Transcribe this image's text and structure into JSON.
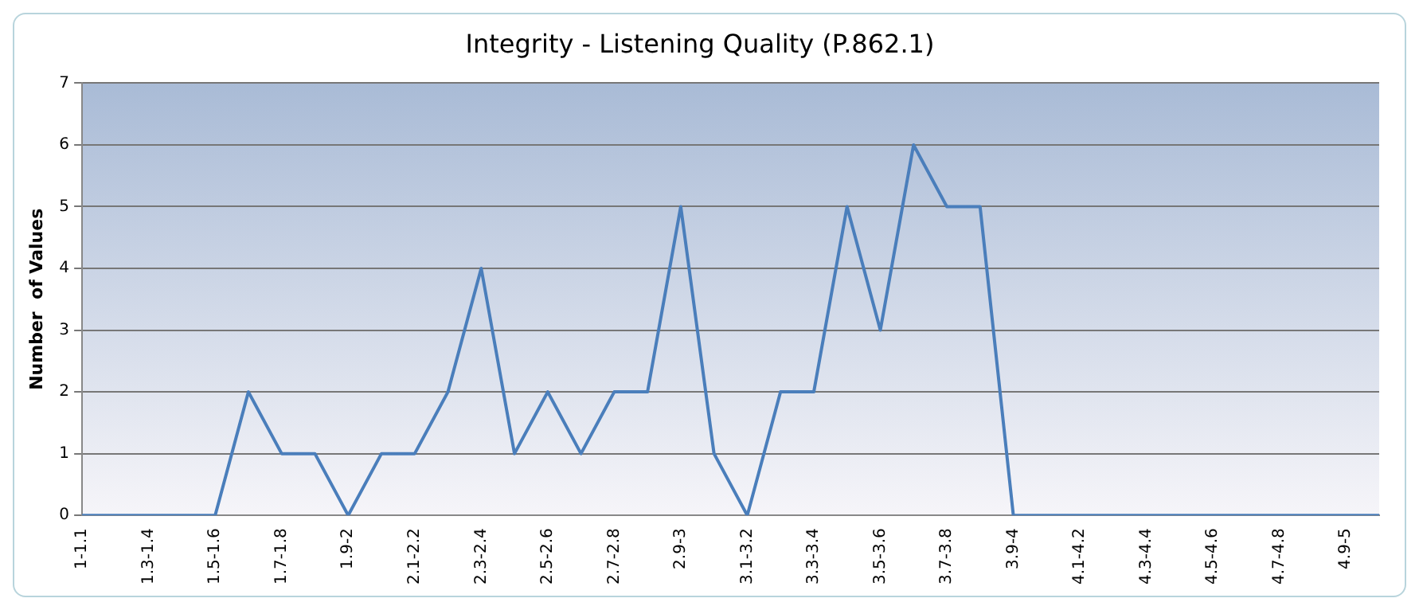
{
  "chart_data": {
    "type": "line",
    "title": "Integrity - Listening Quality (P.862.1)",
    "ylabel": "Number  of Values",
    "categories": [
      "1-1.1",
      null,
      "1.3-1.4",
      null,
      "1.5-1.6",
      null,
      "1.7-1.8",
      null,
      "1.9-2",
      null,
      "2.1-2.2",
      null,
      "2.3-2.4",
      null,
      "2.5-2.6",
      null,
      "2.7-2.8",
      null,
      "2.9-3",
      null,
      "3.1-3.2",
      null,
      "3.3-3.4",
      null,
      "3.5-3.6",
      null,
      "3.7-3.8",
      null,
      "3.9-4",
      null,
      "4.1-4.2",
      null,
      "4.3-4.4",
      null,
      "4.5-4.6",
      null,
      "4.7-4.8",
      null,
      "4.9-5",
      null
    ],
    "series": [
      {
        "color": "#4a7ebb",
        "values": [
          0,
          0,
          0,
          0,
          0,
          2,
          1,
          1,
          0,
          1,
          1,
          2,
          4,
          1,
          2,
          1,
          2,
          2,
          5,
          1,
          0,
          2,
          2,
          5,
          3,
          6,
          5,
          5,
          0,
          0,
          0,
          0,
          0,
          0,
          0,
          0,
          0,
          0,
          0,
          0
        ]
      }
    ],
    "ylim": [
      0,
      7
    ],
    "yticks": [
      0,
      1,
      2,
      3,
      4,
      5,
      6,
      7
    ],
    "grid": "y",
    "legend": false,
    "marker": "none",
    "line_style": "solid"
  }
}
